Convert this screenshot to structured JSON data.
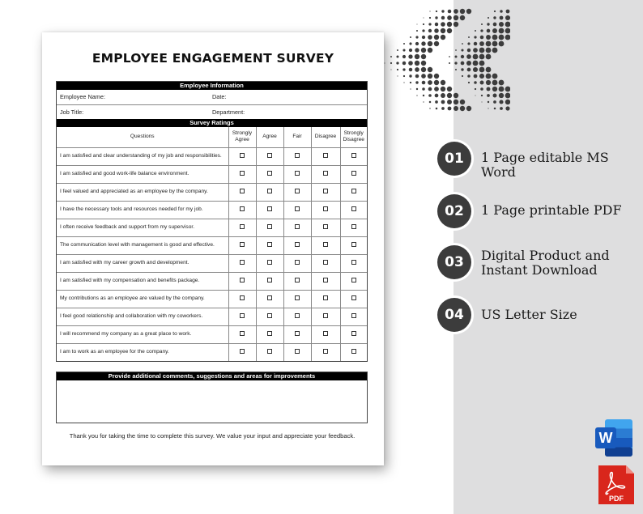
{
  "document": {
    "title": "EMPLOYEE ENGAGEMENT SURVEY",
    "employee_info": {
      "header": "Employee Information",
      "employee_name_label": "Employee Name:",
      "date_label": "Date:",
      "job_title_label": "Job Title:",
      "department_label": "Department:"
    },
    "ratings": {
      "header": "Survey Ratings",
      "questions_header": "Questions",
      "columns": [
        "Strongly Agree",
        "Agree",
        "Fair",
        "Disagree",
        "Strongly Disagree"
      ],
      "questions": [
        "I am satisfied and clear understanding of my job and responsibilities.",
        "I am satisfied and good work-life balance environment.",
        "I feel valued and appreciated as an employee by the company.",
        "I have the necessary tools and resources needed for my job.",
        "I often receive feedback and support from my supervisor.",
        "The communication level with management is good and effective.",
        "I am satisfied with my career growth and development.",
        "I am satisfied with my compensation and benefits package.",
        "My contributions as an employee are valued by the company.",
        "I feel good relationship and collaboration with my coworkers.",
        "I will recommend my company as a great place to work.",
        "I am to work as an employee for the company."
      ]
    },
    "comments_header": "Provide additional comments, suggestions and areas for improvements",
    "thanks": "Thank you for taking the time to complete this survey. We value your input and appreciate your feedback."
  },
  "features": [
    {
      "number": "01",
      "text": "1 Page editable MS Word"
    },
    {
      "number": "02",
      "text": "1 Page printable PDF"
    },
    {
      "number": "03",
      "text": "Digital Product and Instant Download"
    },
    {
      "number": "04",
      "text": "US Letter Size"
    }
  ],
  "icons": {
    "word": {
      "name": "microsoft-word-icon",
      "letter": "W",
      "color": "#185abd"
    },
    "pdf": {
      "name": "adobe-pdf-icon",
      "label": "PDF",
      "color": "#d9261c"
    }
  },
  "colors": {
    "badge": "#3c3c3c",
    "panel": "#dededf",
    "header_bar": "#000000"
  }
}
